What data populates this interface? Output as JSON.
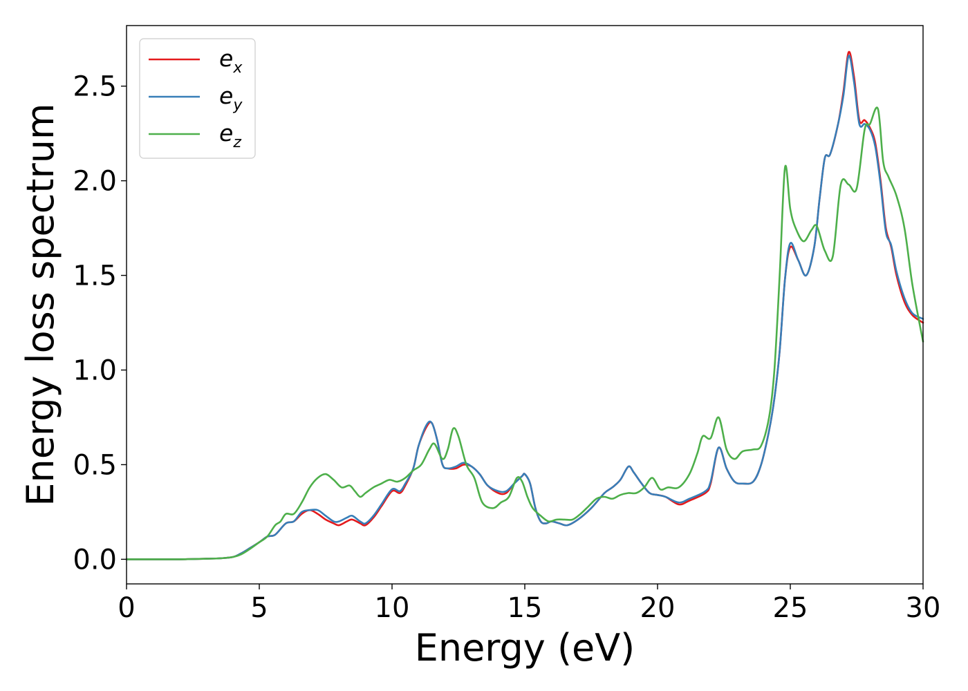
{
  "chart_data": {
    "type": "line",
    "xlabel": "Energy (eV)",
    "ylabel": "Energy loss spectrum",
    "xlim": [
      0,
      30
    ],
    "ylim": [
      -0.13,
      2.82
    ],
    "xticks": [
      0,
      5,
      10,
      15,
      20,
      25,
      30
    ],
    "yticks": [
      0.0,
      0.5,
      1.0,
      1.5,
      2.0,
      2.5
    ],
    "xtick_labels": [
      "0",
      "5",
      "10",
      "15",
      "20",
      "25",
      "30"
    ],
    "ytick_labels": [
      "0.0",
      "0.5",
      "1.0",
      "1.5",
      "2.0",
      "2.5"
    ],
    "grid": false,
    "legend_position": "top-left",
    "series": [
      {
        "name": "e_x",
        "label_main": "e",
        "label_sub": "x",
        "color": "#e41a1c",
        "x": [
          0,
          1,
          2,
          3,
          3.5,
          4,
          4.3,
          4.6,
          5,
          5.3,
          5.6,
          6,
          6.3,
          6.6,
          6.9,
          7.2,
          7.5,
          7.8,
          8.0,
          8.3,
          8.5,
          8.8,
          9.0,
          9.3,
          9.6,
          10.0,
          10.3,
          10.5,
          10.8,
          11.0,
          11.3,
          11.5,
          11.7,
          11.9,
          12.1,
          12.4,
          12.7,
          13.0,
          13.3,
          13.6,
          14.0,
          14.3,
          14.6,
          14.9,
          15.0,
          15.2,
          15.4,
          15.6,
          15.8,
          16.0,
          16.3,
          16.6,
          17.0,
          17.5,
          18.0,
          18.3,
          18.6,
          18.9,
          19.1,
          19.4,
          19.7,
          20.0,
          20.3,
          20.8,
          21.2,
          21.8,
          22.0,
          22.3,
          22.6,
          22.9,
          23.2,
          23.6,
          23.9,
          24.2,
          24.4,
          24.6,
          24.8,
          25.0,
          25.3,
          25.6,
          25.9,
          26.1,
          26.3,
          26.5,
          26.8,
          27.0,
          27.2,
          27.4,
          27.6,
          27.8,
          28.0,
          28.2,
          28.4,
          28.6,
          28.8,
          29.0,
          29.3,
          29.6,
          30.0
        ],
        "y": [
          0.0,
          0.0,
          0.0,
          0.003,
          0.005,
          0.012,
          0.03,
          0.055,
          0.09,
          0.12,
          0.13,
          0.19,
          0.2,
          0.24,
          0.26,
          0.24,
          0.21,
          0.19,
          0.18,
          0.2,
          0.21,
          0.19,
          0.18,
          0.22,
          0.28,
          0.36,
          0.35,
          0.39,
          0.48,
          0.6,
          0.7,
          0.72,
          0.63,
          0.5,
          0.48,
          0.48,
          0.5,
          0.49,
          0.45,
          0.39,
          0.35,
          0.35,
          0.4,
          0.44,
          0.45,
          0.4,
          0.27,
          0.2,
          0.19,
          0.2,
          0.19,
          0.18,
          0.21,
          0.27,
          0.35,
          0.38,
          0.42,
          0.49,
          0.46,
          0.4,
          0.35,
          0.34,
          0.33,
          0.29,
          0.31,
          0.35,
          0.4,
          0.59,
          0.48,
          0.41,
          0.4,
          0.41,
          0.5,
          0.68,
          0.85,
          1.1,
          1.48,
          1.65,
          1.58,
          1.5,
          1.65,
          1.9,
          2.12,
          2.14,
          2.3,
          2.47,
          2.68,
          2.55,
          2.32,
          2.32,
          2.28,
          2.2,
          2.0,
          1.75,
          1.65,
          1.5,
          1.36,
          1.29,
          1.25
        ]
      },
      {
        "name": "e_y",
        "label_main": "e",
        "label_sub": "y",
        "color": "#377eb8",
        "x": [
          0,
          1,
          2,
          3,
          3.5,
          4,
          4.3,
          4.6,
          5,
          5.3,
          5.6,
          6,
          6.3,
          6.6,
          6.9,
          7.2,
          7.5,
          7.8,
          8.0,
          8.3,
          8.5,
          8.8,
          9.0,
          9.3,
          9.6,
          10.0,
          10.3,
          10.5,
          10.8,
          11.0,
          11.3,
          11.5,
          11.7,
          11.9,
          12.1,
          12.4,
          12.7,
          13.0,
          13.3,
          13.6,
          14.0,
          14.3,
          14.6,
          14.9,
          15.0,
          15.2,
          15.4,
          15.6,
          15.8,
          16.0,
          16.3,
          16.6,
          17.0,
          17.5,
          18.0,
          18.3,
          18.6,
          18.9,
          19.1,
          19.4,
          19.7,
          20.0,
          20.3,
          20.8,
          21.2,
          21.8,
          22.0,
          22.3,
          22.6,
          22.9,
          23.2,
          23.6,
          23.9,
          24.2,
          24.4,
          24.6,
          24.8,
          25.0,
          25.3,
          25.6,
          25.9,
          26.1,
          26.3,
          26.5,
          26.8,
          27.0,
          27.2,
          27.4,
          27.6,
          27.8,
          28.0,
          28.2,
          28.4,
          28.6,
          28.8,
          29.0,
          29.3,
          29.6,
          30.0
        ],
        "y": [
          0.0,
          0.0,
          0.0,
          0.003,
          0.005,
          0.012,
          0.03,
          0.055,
          0.09,
          0.12,
          0.13,
          0.19,
          0.2,
          0.25,
          0.26,
          0.26,
          0.23,
          0.2,
          0.2,
          0.22,
          0.23,
          0.2,
          0.19,
          0.23,
          0.29,
          0.37,
          0.36,
          0.4,
          0.48,
          0.6,
          0.71,
          0.72,
          0.63,
          0.5,
          0.48,
          0.49,
          0.51,
          0.49,
          0.45,
          0.39,
          0.36,
          0.36,
          0.4,
          0.44,
          0.45,
          0.4,
          0.27,
          0.2,
          0.19,
          0.2,
          0.19,
          0.18,
          0.21,
          0.27,
          0.35,
          0.38,
          0.42,
          0.49,
          0.46,
          0.4,
          0.35,
          0.34,
          0.33,
          0.3,
          0.32,
          0.36,
          0.41,
          0.59,
          0.48,
          0.41,
          0.4,
          0.41,
          0.5,
          0.68,
          0.85,
          1.1,
          1.48,
          1.67,
          1.58,
          1.5,
          1.65,
          1.9,
          2.12,
          2.14,
          2.3,
          2.45,
          2.66,
          2.52,
          2.3,
          2.3,
          2.27,
          2.18,
          1.98,
          1.73,
          1.66,
          1.52,
          1.38,
          1.3,
          1.27
        ]
      },
      {
        "name": "e_z",
        "label_main": "e",
        "label_sub": "z",
        "color": "#4daf4a",
        "x": [
          0,
          1,
          2,
          3,
          3.5,
          4,
          4.3,
          4.6,
          5,
          5.3,
          5.6,
          5.8,
          6.0,
          6.3,
          6.6,
          6.9,
          7.2,
          7.5,
          7.8,
          8.1,
          8.4,
          8.6,
          8.8,
          9.0,
          9.3,
          9.6,
          9.9,
          10.2,
          10.5,
          10.8,
          11.1,
          11.4,
          11.6,
          11.9,
          12.1,
          12.3,
          12.5,
          12.8,
          13.1,
          13.4,
          13.8,
          14.1,
          14.4,
          14.7,
          14.9,
          15.1,
          15.3,
          15.6,
          15.9,
          16.2,
          16.5,
          16.8,
          17.1,
          17.4,
          17.7,
          18.0,
          18.3,
          18.6,
          18.9,
          19.2,
          19.5,
          19.8,
          20.1,
          20.4,
          20.8,
          21.2,
          21.5,
          21.7,
          22.0,
          22.3,
          22.6,
          22.9,
          23.2,
          23.6,
          23.9,
          24.2,
          24.4,
          24.6,
          24.8,
          25.0,
          25.2,
          25.5,
          25.8,
          26.0,
          26.3,
          26.6,
          26.9,
          27.2,
          27.5,
          27.8,
          28.0,
          28.3,
          28.5,
          28.7,
          29.0,
          29.3,
          29.6,
          30.0
        ],
        "y": [
          0.0,
          0.0,
          0.0,
          0.003,
          0.005,
          0.012,
          0.025,
          0.05,
          0.09,
          0.12,
          0.18,
          0.2,
          0.24,
          0.24,
          0.3,
          0.38,
          0.43,
          0.45,
          0.42,
          0.38,
          0.39,
          0.36,
          0.33,
          0.35,
          0.38,
          0.4,
          0.42,
          0.41,
          0.43,
          0.47,
          0.5,
          0.58,
          0.61,
          0.53,
          0.58,
          0.69,
          0.65,
          0.5,
          0.43,
          0.3,
          0.27,
          0.3,
          0.33,
          0.43,
          0.41,
          0.33,
          0.27,
          0.23,
          0.2,
          0.21,
          0.21,
          0.21,
          0.24,
          0.28,
          0.32,
          0.33,
          0.32,
          0.34,
          0.35,
          0.35,
          0.38,
          0.43,
          0.37,
          0.38,
          0.38,
          0.45,
          0.56,
          0.65,
          0.64,
          0.75,
          0.58,
          0.53,
          0.57,
          0.58,
          0.6,
          0.75,
          1.0,
          1.5,
          2.07,
          1.85,
          1.75,
          1.68,
          1.74,
          1.76,
          1.63,
          1.6,
          1.98,
          1.98,
          1.96,
          2.27,
          2.3,
          2.38,
          2.1,
          2.02,
          1.92,
          1.75,
          1.45,
          1.15
        ]
      }
    ]
  }
}
